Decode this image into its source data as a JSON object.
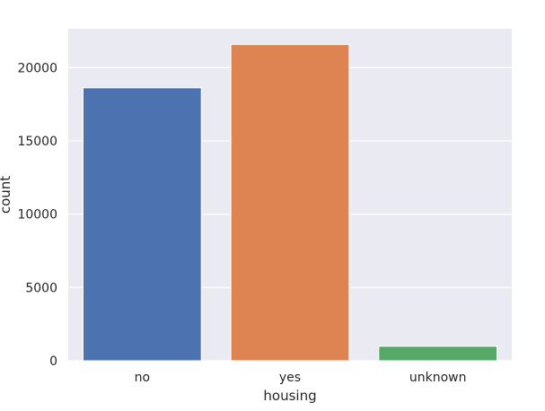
{
  "chart_data": {
    "type": "bar",
    "categories": [
      "no",
      "yes",
      "unknown"
    ],
    "values": [
      18622,
      21576,
      990
    ],
    "xlabel": "housing",
    "ylabel": "count",
    "ylim": [
      0,
      22654
    ],
    "yticks": [
      0,
      5000,
      10000,
      15000,
      20000
    ],
    "colors": [
      "#4c72b0",
      "#dd8452",
      "#55a868"
    ],
    "background": "#eaeaf2",
    "grid_color": "#ffffff",
    "grid": true,
    "legend": false
  }
}
